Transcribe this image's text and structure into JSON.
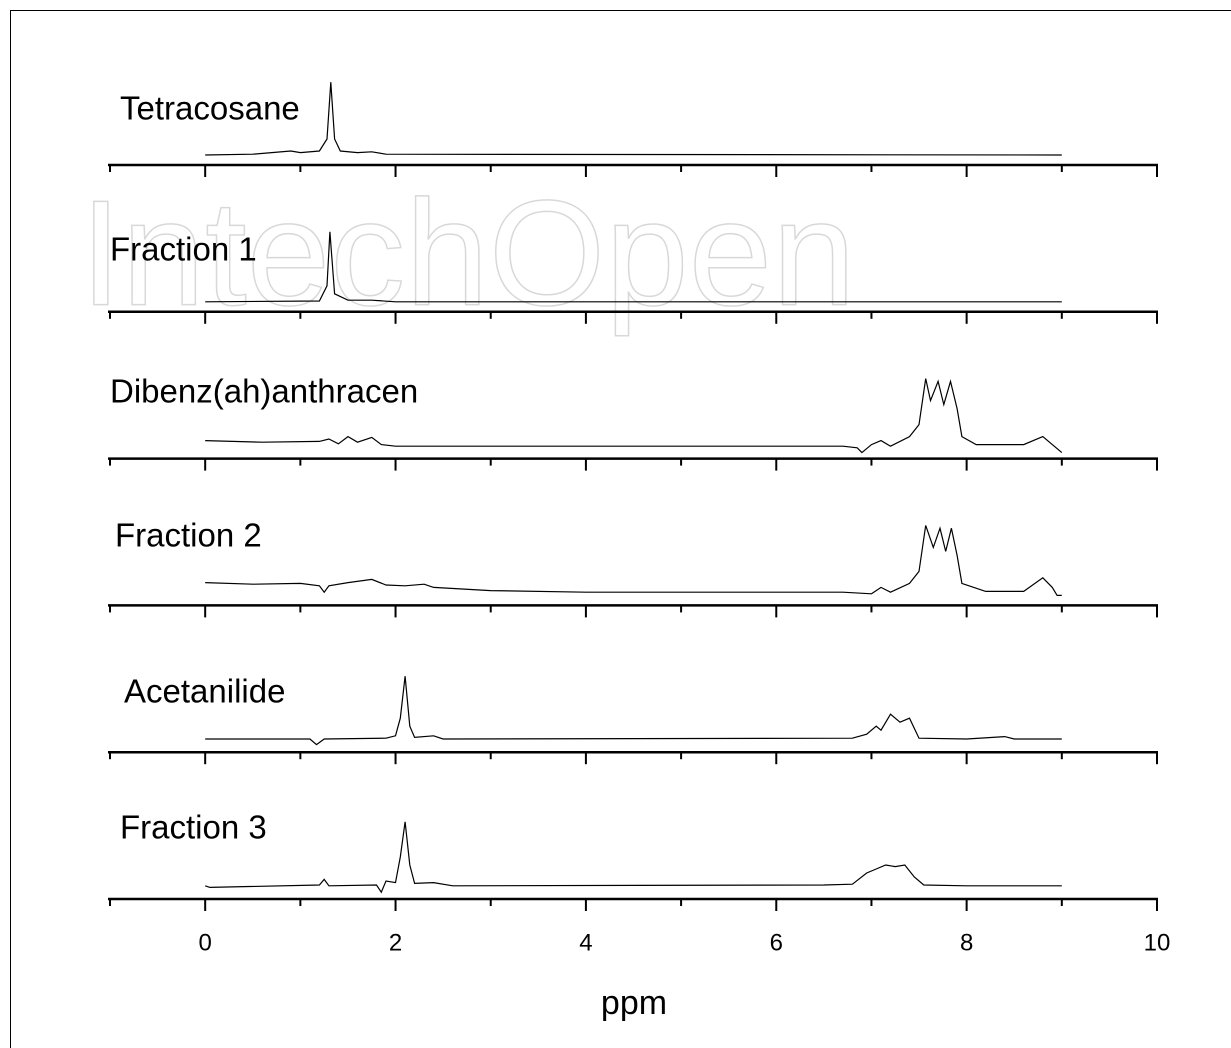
{
  "watermark": "IntechOpen",
  "chart_data": [
    {
      "type": "line",
      "title": "Tetracosane",
      "color": "#000000",
      "xlim": [
        -1,
        10
      ],
      "ylim": [
        -0.125,
        1.125
      ],
      "x": [
        0,
        0.5,
        0.9,
        1.0,
        1.2,
        1.28,
        1.32,
        1.36,
        1.42,
        1.6,
        1.75,
        1.9,
        9
      ],
      "values": [
        0,
        0.01,
        0.05,
        0.03,
        0.05,
        0.2,
        0.91,
        0.2,
        0.05,
        0.03,
        0.04,
        0.01,
        0
      ]
    },
    {
      "type": "line",
      "title": "Fraction 1",
      "color": "#000000",
      "xlim": [
        -1,
        10
      ],
      "ylim": [
        -0.125,
        1.125
      ],
      "x": [
        0,
        1.2,
        1.28,
        1.31,
        1.36,
        1.5,
        1.75,
        2,
        9
      ],
      "values": [
        0,
        0.01,
        0.2,
        0.875,
        0.1,
        0.02,
        0.02,
        0,
        0
      ]
    },
    {
      "type": "line",
      "title": "Dibenz(ah)anthracen",
      "color": "#000000",
      "xlim": [
        -1,
        10
      ],
      "ylim": [
        -0.125,
        1.125
      ],
      "x": [
        0,
        0.6,
        1.2,
        1.3,
        1.4,
        1.5,
        1.6,
        1.75,
        1.85,
        2,
        6.7,
        6.85,
        6.9,
        7.0,
        7.1,
        7.2,
        7.4,
        7.5,
        7.57,
        7.62,
        7.7,
        7.76,
        7.83,
        7.9,
        7.95,
        8.1,
        8.6,
        8.8,
        8.9,
        9
      ],
      "values": [
        0.1,
        0.08,
        0.09,
        0.12,
        0.06,
        0.15,
        0.08,
        0.14,
        0.05,
        0.03,
        0.03,
        0.01,
        -0.05,
        0.05,
        0.1,
        0.03,
        0.15,
        0.3,
        0.875,
        0.6,
        0.84,
        0.55,
        0.84,
        0.5,
        0.15,
        0.05,
        0.05,
        0.15,
        0.05,
        -0.05
      ]
    },
    {
      "type": "line",
      "title": "Fraction 2",
      "color": "#000000",
      "xlim": [
        -1,
        10
      ],
      "ylim": [
        -0.125,
        1.125
      ],
      "x": [
        0,
        0.5,
        1.0,
        1.2,
        1.25,
        1.3,
        1.5,
        1.75,
        1.9,
        2.1,
        2.3,
        2.4,
        3,
        4,
        6.7,
        7.0,
        7.1,
        7.2,
        7.4,
        7.5,
        7.57,
        7.65,
        7.72,
        7.78,
        7.84,
        7.9,
        7.95,
        8.2,
        8.6,
        8.8,
        8.9,
        8.95,
        9
      ],
      "values": [
        0.16,
        0.14,
        0.15,
        0.12,
        0.04,
        0.12,
        0.16,
        0.2,
        0.13,
        0.12,
        0.14,
        0.1,
        0.06,
        0.04,
        0.04,
        0.02,
        0.1,
        0.04,
        0.15,
        0.3,
        0.875,
        0.6,
        0.84,
        0.55,
        0.84,
        0.5,
        0.15,
        0.05,
        0.05,
        0.22,
        0.1,
        0,
        0
      ]
    },
    {
      "type": "line",
      "title": "Acetanilide",
      "color": "#000000",
      "xlim": [
        -1,
        10
      ],
      "ylim": [
        -0.125,
        1.125
      ],
      "x": [
        0,
        1.1,
        1.17,
        1.25,
        1.9,
        2.0,
        2.05,
        2.1,
        2.15,
        2.2,
        2.4,
        2.5,
        6.8,
        6.95,
        7.05,
        7.1,
        7.2,
        7.3,
        7.4,
        7.5,
        8.0,
        8.4,
        8.5,
        9
      ],
      "values": [
        0.04,
        0.04,
        -0.03,
        0.04,
        0.05,
        0.08,
        0.3,
        0.825,
        0.2,
        0.06,
        0.08,
        0.04,
        0.05,
        0.1,
        0.2,
        0.15,
        0.35,
        0.25,
        0.3,
        0.05,
        0.04,
        0.07,
        0.04,
        0.04
      ]
    },
    {
      "type": "line",
      "title": "Fraction 3",
      "color": "#000000",
      "xlim": [
        -1,
        10
      ],
      "ylim": [
        -0.125,
        1.125
      ],
      "x": [
        0,
        0.05,
        1.2,
        1.25,
        1.3,
        1.8,
        1.85,
        1.9,
        2.0,
        2.05,
        2.1,
        2.15,
        2.2,
        2.4,
        2.6,
        6.5,
        6.8,
        6.95,
        7.05,
        7.15,
        7.25,
        7.35,
        7.45,
        7.55,
        8.0,
        9
      ],
      "values": [
        0.04,
        0.02,
        0.05,
        0.12,
        0.04,
        0.05,
        -0.04,
        0.1,
        0.08,
        0.4,
        0.84,
        0.3,
        0.07,
        0.08,
        0.04,
        0.05,
        0.06,
        0.2,
        0.25,
        0.3,
        0.28,
        0.3,
        0.15,
        0.05,
        0.04,
        0.04
      ],
      "xticks": [
        0,
        2,
        4,
        6,
        8,
        10
      ],
      "xminor_ticks": [
        -1,
        1,
        3,
        5,
        7,
        9
      ],
      "xlabel": "ppm"
    }
  ]
}
